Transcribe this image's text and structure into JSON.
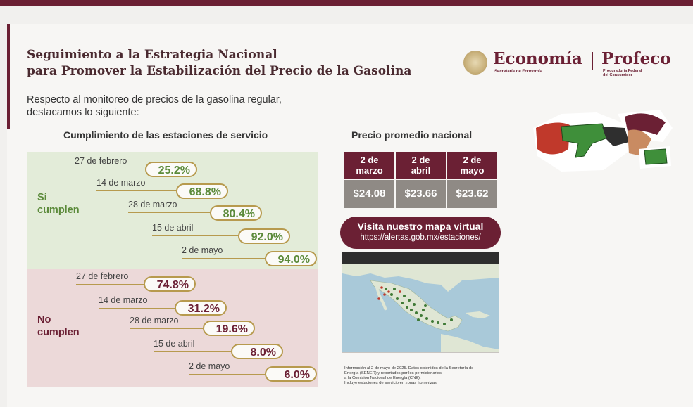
{
  "header": {
    "title_line1": "Seguimiento a la Estrategia Nacional",
    "title_line2": "para Promover la Estabilización del Precio de la Gasolina",
    "intro_line1": "Respecto al monitoreo de precios de la gasolina regular,",
    "intro_line2": "destacamos lo siguiente:"
  },
  "logos": {
    "economia": "Economía",
    "economia_sub": "Secretaría de Economía",
    "profeco": "Profeco",
    "profeco_sub1": "Procuraduría Federal",
    "profeco_sub2": "del Consumidor"
  },
  "compliance": {
    "heading": "Cumplimiento de las estaciones de servicio",
    "si": {
      "label_line1": "Sí",
      "label_line2": "cumplen",
      "rows": [
        {
          "date": "27 de febrero",
          "value": "25.2%"
        },
        {
          "date": "14 de marzo",
          "value": "68.8%"
        },
        {
          "date": "28 de marzo",
          "value": "80.4%"
        },
        {
          "date": "15 de abril",
          "value": "92.0%"
        },
        {
          "date": "2 de mayo",
          "value": "94.0%"
        }
      ]
    },
    "no": {
      "label_line1": "No",
      "label_line2": "cumplen",
      "rows": [
        {
          "date": "27 de febrero",
          "value": "74.8%"
        },
        {
          "date": "14 de marzo",
          "value": "31.2%"
        },
        {
          "date": "28 de marzo",
          "value": "19.6%"
        },
        {
          "date": "15 de abril",
          "value": "8.0%"
        },
        {
          "date": "2 de mayo",
          "value": "6.0%"
        }
      ]
    }
  },
  "price": {
    "heading": "Precio promedio nacional",
    "columns": [
      {
        "line1": "2 de",
        "line2": "marzo",
        "value": "$24.08"
      },
      {
        "line1": "2 de",
        "line2": "abril",
        "value": "$23.66"
      },
      {
        "line1": "2 de",
        "line2": "mayo",
        "value": "$23.62"
      }
    ]
  },
  "visit": {
    "title": "Visita nuestro mapa virtual",
    "url": "https://alertas.gob.mx/estaciones/"
  },
  "note": {
    "line1": "Información al 2 de mayo de 2025. Datos obtenidos de la Secretaría de",
    "line2": "Energía (SENER) y reportados por los permisionarios",
    "line3": "a la Comisión Nacional de Energía (CNE).",
    "line4": "Incluye estaciones de servicio en zonas fronterizas."
  },
  "colors": {
    "brand": "#6b2034",
    "green": "#5b8a3a",
    "gold": "#b79a4e",
    "price_cell": "#8f8a85"
  }
}
